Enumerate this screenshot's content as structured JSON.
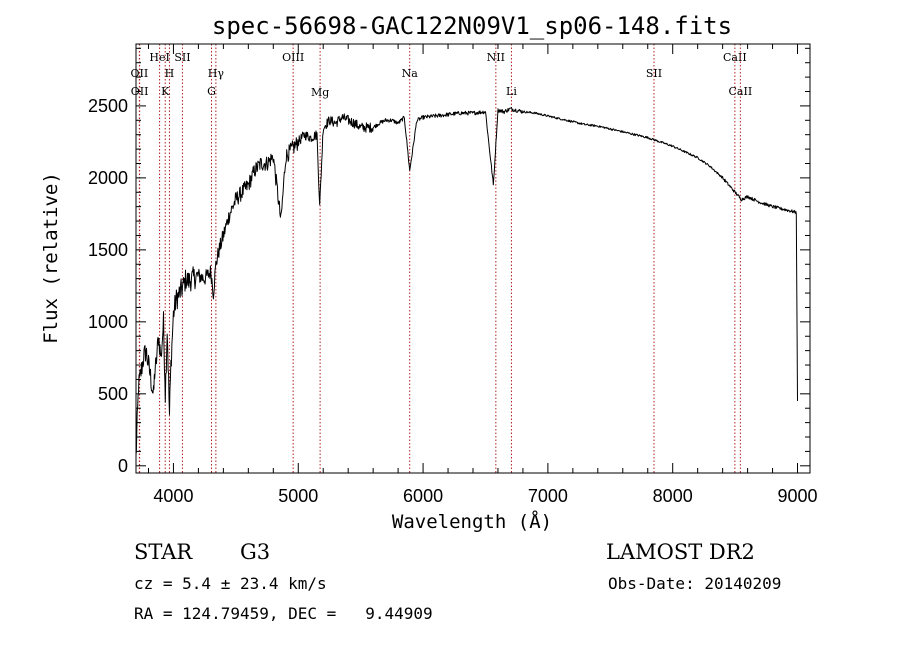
{
  "chart_data": {
    "type": "line",
    "title": "spec-56698-GAC122N09V1_sp06-148.fits",
    "xlabel": "Wavelength (Å)",
    "ylabel": "Flux (relative)",
    "xlim": [
      3700,
      9100
    ],
    "ylim": [
      -50,
      2930
    ],
    "xticks": [
      4000,
      5000,
      6000,
      7000,
      8000,
      9000
    ],
    "yticks": [
      0,
      500,
      1000,
      1500,
      2000,
      2500
    ],
    "grid": false,
    "series": [
      {
        "name": "flux",
        "x": [
          3700,
          3710,
          3720,
          3740,
          3760,
          3780,
          3800,
          3820,
          3840,
          3850,
          3860,
          3880,
          3900,
          3920,
          3935,
          3950,
          3968,
          3980,
          4000,
          4020,
          4050,
          4080,
          4101,
          4120,
          4150,
          4200,
          4250,
          4300,
          4320,
          4340,
          4360,
          4400,
          4450,
          4500,
          4550,
          4600,
          4650,
          4700,
          4750,
          4800,
          4861,
          4900,
          4950,
          5000,
          5050,
          5100,
          5150,
          5172,
          5200,
          5250,
          5300,
          5350,
          5400,
          5450,
          5500,
          5550,
          5600,
          5650,
          5700,
          5750,
          5800,
          5850,
          5893,
          5950,
          6000,
          6100,
          6200,
          6300,
          6400,
          6500,
          6563,
          6600,
          6650,
          6700,
          6750,
          6800,
          6900,
          7000,
          7100,
          7200,
          7300,
          7400,
          7500,
          7600,
          7700,
          7800,
          7900,
          8000,
          8100,
          8200,
          8300,
          8400,
          8500,
          8550,
          8600,
          8700,
          8800,
          8900,
          8990,
          9000
        ],
        "y": [
          50,
          300,
          550,
          650,
          750,
          800,
          700,
          600,
          480,
          650,
          700,
          900,
          750,
          1000,
          500,
          950,
          350,
          700,
          1050,
          1150,
          1200,
          1250,
          1300,
          1280,
          1300,
          1320,
          1300,
          1350,
          1200,
          1400,
          1480,
          1600,
          1750,
          1850,
          1900,
          1950,
          2050,
          2100,
          2100,
          2150,
          1700,
          2150,
          2200,
          2250,
          2300,
          2280,
          2300,
          1800,
          2350,
          2400,
          2380,
          2420,
          2400,
          2380,
          2350,
          2350,
          2350,
          2380,
          2400,
          2400,
          2380,
          2420,
          2050,
          2400,
          2420,
          2430,
          2440,
          2450,
          2450,
          2460,
          1950,
          2470,
          2460,
          2480,
          2470,
          2460,
          2450,
          2430,
          2410,
          2390,
          2370,
          2360,
          2340,
          2320,
          2300,
          2280,
          2250,
          2220,
          2180,
          2140,
          2080,
          2000,
          1900,
          1850,
          1870,
          1830,
          1800,
          1780,
          1760,
          450
        ]
      }
    ],
    "spectral_lines": [
      {
        "label": "OII",
        "x": 3727,
        "row": 2
      },
      {
        "label": "OII",
        "x": 3729,
        "row": 3
      },
      {
        "label": "HeI",
        "x": 3889,
        "row": 1
      },
      {
        "label": "H",
        "x": 3968,
        "row": 2
      },
      {
        "label": "K",
        "x": 3934,
        "row": 3
      },
      {
        "label": "SII",
        "x": 4072,
        "row": 1
      },
      {
        "label": "Hγ",
        "x": 4340,
        "row": 2
      },
      {
        "label": "G",
        "x": 4305,
        "row": 3
      },
      {
        "label": "OIII",
        "x": 4959,
        "row": 1
      },
      {
        "label": "Mg",
        "x": 5175,
        "row": 4
      },
      {
        "label": "Na",
        "x": 5893,
        "row": 2
      },
      {
        "label": "NII",
        "x": 6583,
        "row": 1
      },
      {
        "label": "Li",
        "x": 6708,
        "row": 3
      },
      {
        "label": "SII",
        "x": 7850,
        "row": 2
      },
      {
        "label": "CaII",
        "x": 8498,
        "row": 1
      },
      {
        "label": "CaII",
        "x": 8542,
        "row": 3
      }
    ]
  },
  "info": {
    "class_label": "STAR",
    "subclass": "G3",
    "survey": "LAMOST DR2",
    "redshift": "cz = 5.4 ± 23.4 km/s",
    "obs_date": "Obs-Date: 20140209",
    "coords": "RA = 124.79459, DEC =   9.44909"
  },
  "colors": {
    "line": "#000000",
    "marker": "#b22222",
    "axis": "#000000"
  }
}
